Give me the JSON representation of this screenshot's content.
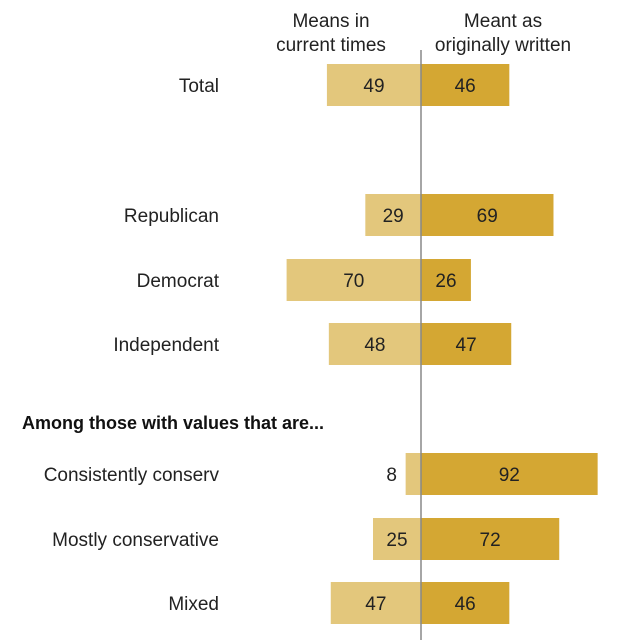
{
  "chart_data": {
    "type": "bar",
    "orientation": "horizontal-diverging",
    "series": [
      {
        "name": "Means in current times",
        "header_lines": [
          "Means in",
          "current times"
        ],
        "color": "#e3c77c",
        "values": [
          49,
          29,
          70,
          48,
          8,
          25,
          47
        ]
      },
      {
        "name": "Meant as originally written",
        "header_lines": [
          "Meant as",
          "originally written"
        ],
        "color": "#d4a733",
        "values": [
          46,
          69,
          26,
          47,
          92,
          72,
          46
        ]
      }
    ],
    "categories": [
      "Total",
      "Republican",
      "Democrat",
      "Independent",
      "Consistently conserv",
      "Mostly conservative",
      "Mixed"
    ],
    "section_heading": "Among those with values that are...",
    "section_heading_before_index": 4,
    "xlim": [
      0,
      100
    ],
    "grid": false,
    "axis_color": "#888888"
  }
}
